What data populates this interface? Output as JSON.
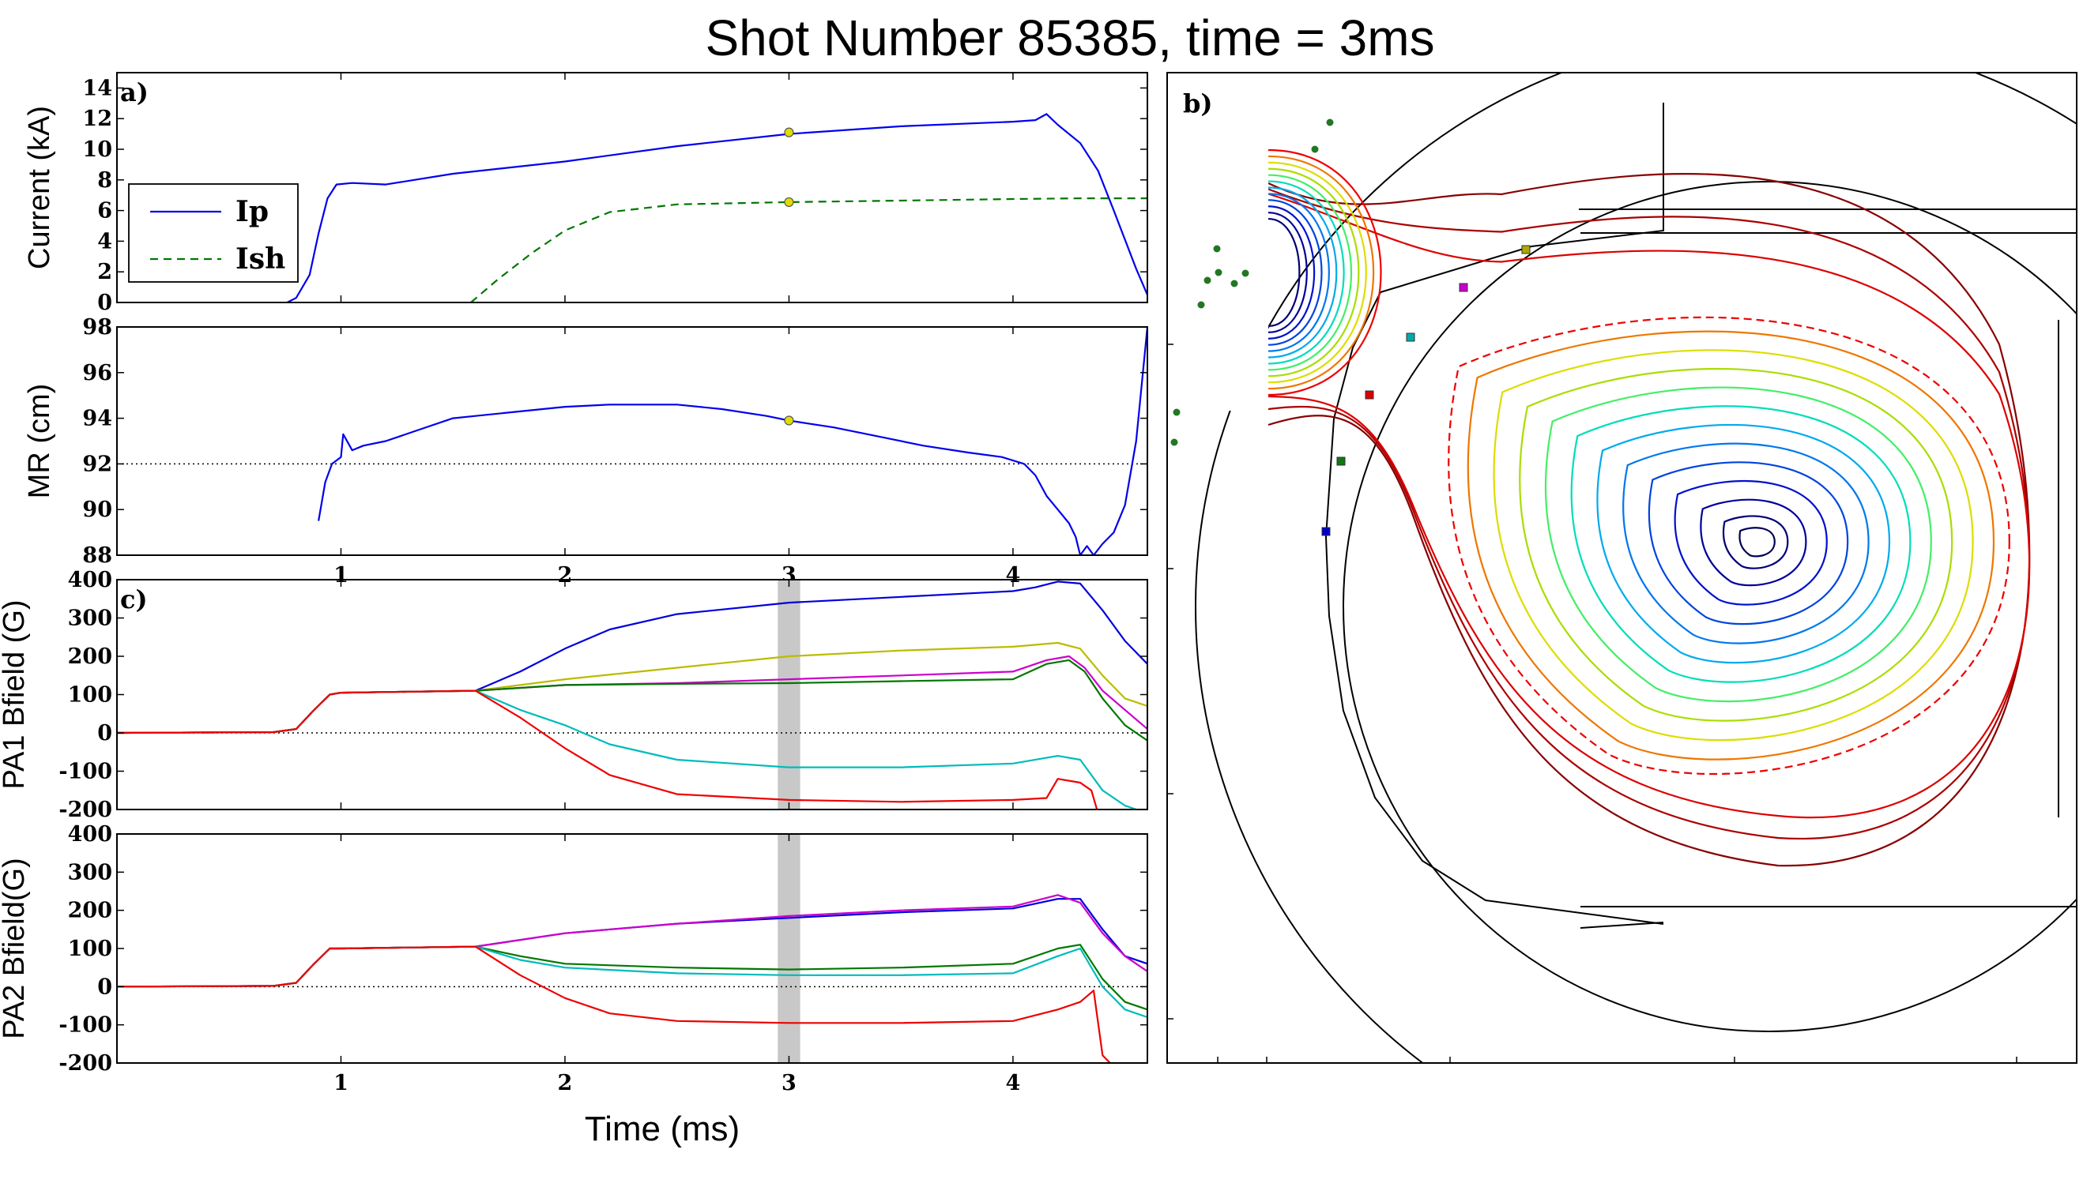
{
  "figure": {
    "title": "Shot Number 85385, time = 3ms",
    "xlabel": "Time (ms)",
    "time_marker_ms": 3
  },
  "chart_data": [
    {
      "id": "a",
      "type": "line",
      "panel_label": "a)",
      "ylabel": "Current (kA)",
      "xlim": [
        0,
        4.6
      ],
      "ylim": [
        0,
        15
      ],
      "yticks": [
        0,
        2,
        4,
        6,
        8,
        10,
        12,
        14
      ],
      "xticks": [],
      "legend": {
        "placement": "left",
        "entries": [
          "Ip",
          "Ish"
        ]
      },
      "series": [
        {
          "name": "Ip",
          "color": "#0000ee",
          "dash": "solid",
          "x": [
            0.76,
            0.8,
            0.86,
            0.9,
            0.94,
            0.98,
            1.05,
            1.2,
            1.5,
            2.0,
            2.5,
            3.0,
            3.5,
            4.0,
            4.1,
            4.15,
            4.2,
            4.3,
            4.38,
            4.45,
            4.55,
            4.6
          ],
          "y": [
            0,
            0.3,
            1.8,
            4.5,
            6.8,
            7.7,
            7.8,
            7.7,
            8.4,
            9.2,
            10.2,
            11.0,
            11.5,
            11.8,
            11.9,
            12.3,
            11.6,
            10.4,
            8.6,
            6.0,
            2.2,
            0.5
          ]
        },
        {
          "name": "Ish",
          "color": "#007700",
          "dash": "dashed",
          "x": [
            1.58,
            1.7,
            1.85,
            2.0,
            2.2,
            2.5,
            3.0,
            3.5,
            4.0,
            4.3,
            4.6
          ],
          "y": [
            0,
            1.5,
            3.2,
            4.7,
            5.9,
            6.4,
            6.55,
            6.65,
            6.75,
            6.8,
            6.8
          ]
        }
      ],
      "markers": [
        {
          "x": 3,
          "y": 11.1,
          "color": "#dddd00"
        },
        {
          "x": 3,
          "y": 6.55,
          "color": "#dddd00"
        }
      ]
    },
    {
      "id": "mr",
      "type": "line",
      "ylabel": "MR (cm)",
      "xlim": [
        0,
        4.6
      ],
      "ylim": [
        88,
        98
      ],
      "yticks": [
        88,
        90,
        92,
        94,
        96,
        98
      ],
      "xticks": [
        1,
        2,
        3,
        4
      ],
      "reference_line_y": 92,
      "series": [
        {
          "name": "",
          "color": "#0000ee",
          "dash": "solid",
          "x": [
            0.9,
            0.93,
            0.96,
            1.0,
            1.01,
            1.05,
            1.1,
            1.2,
            1.35,
            1.5,
            1.6,
            1.8,
            2.0,
            2.2,
            2.5,
            2.7,
            2.9,
            3.0,
            3.2,
            3.4,
            3.6,
            3.8,
            3.95,
            4.05,
            4.1,
            4.15,
            4.2,
            4.25,
            4.28,
            4.3,
            4.33,
            4.36,
            4.4,
            4.45,
            4.5,
            4.55,
            4.6
          ],
          "y": [
            89.5,
            91.2,
            92.0,
            92.3,
            93.3,
            92.6,
            92.8,
            93.0,
            93.5,
            94.0,
            94.1,
            94.3,
            94.5,
            94.6,
            94.6,
            94.4,
            94.1,
            93.9,
            93.6,
            93.2,
            92.8,
            92.5,
            92.3,
            92.0,
            91.5,
            90.6,
            90.0,
            89.4,
            88.8,
            88.0,
            88.4,
            88.0,
            88.5,
            89.0,
            90.2,
            93.0,
            98.0
          ]
        }
      ],
      "markers": [
        {
          "x": 3,
          "y": 93.9,
          "color": "#dddd00"
        }
      ]
    },
    {
      "id": "c",
      "type": "line",
      "panel_label": "c)",
      "ylabel": "PA1 Bfield (G)",
      "xlim": [
        0,
        4.6
      ],
      "ylim": [
        -200,
        400
      ],
      "yticks": [
        -200,
        -100,
        0,
        100,
        200,
        300,
        400
      ],
      "xticks": [],
      "reference_line_y": 0,
      "highlight_band": [
        2.95,
        3.05
      ],
      "series": [
        {
          "name": "",
          "color": "#0000dd",
          "dash": "solid",
          "x": [
            0,
            0.7,
            0.8,
            0.88,
            0.95,
            1.0,
            1.6,
            1.8,
            2.0,
            2.2,
            2.5,
            3.0,
            3.5,
            4.0,
            4.1,
            4.2,
            4.3,
            4.4,
            4.5,
            4.6
          ],
          "y": [
            0,
            2,
            10,
            60,
            100,
            105,
            110,
            160,
            220,
            270,
            310,
            340,
            355,
            370,
            380,
            395,
            390,
            320,
            240,
            180
          ]
        },
        {
          "name": "",
          "color": "#bbbb00",
          "dash": "solid",
          "x": [
            0,
            0.7,
            0.8,
            0.88,
            0.95,
            1.0,
            1.6,
            2.0,
            2.5,
            3.0,
            3.5,
            4.0,
            4.2,
            4.3,
            4.4,
            4.5,
            4.6
          ],
          "y": [
            0,
            2,
            10,
            60,
            100,
            105,
            110,
            140,
            170,
            200,
            215,
            225,
            235,
            220,
            150,
            90,
            70
          ]
        },
        {
          "name": "",
          "color": "#cc00cc",
          "dash": "solid",
          "x": [
            0,
            0.7,
            0.8,
            0.88,
            0.95,
            1.0,
            1.6,
            2.0,
            2.5,
            3.0,
            3.5,
            4.0,
            4.15,
            4.25,
            4.32,
            4.4,
            4.5,
            4.6
          ],
          "y": [
            0,
            2,
            10,
            60,
            100,
            105,
            110,
            125,
            130,
            140,
            150,
            160,
            190,
            200,
            170,
            110,
            60,
            10
          ]
        },
        {
          "name": "",
          "color": "#007700",
          "dash": "solid",
          "x": [
            0,
            0.7,
            0.8,
            0.88,
            0.95,
            1.0,
            1.6,
            2.0,
            2.5,
            3.0,
            3.5,
            4.0,
            4.15,
            4.25,
            4.32,
            4.4,
            4.5,
            4.6
          ],
          "y": [
            0,
            2,
            10,
            60,
            100,
            105,
            110,
            125,
            128,
            130,
            135,
            140,
            180,
            190,
            160,
            90,
            20,
            -20
          ]
        },
        {
          "name": "",
          "color": "#00bbbb",
          "dash": "solid",
          "x": [
            0,
            0.7,
            0.8,
            0.88,
            0.95,
            1.0,
            1.6,
            1.8,
            2.0,
            2.2,
            2.5,
            3.0,
            3.5,
            4.0,
            4.2,
            4.3,
            4.4,
            4.5,
            4.6
          ],
          "y": [
            0,
            2,
            10,
            60,
            100,
            105,
            110,
            60,
            20,
            -30,
            -70,
            -90,
            -90,
            -80,
            -60,
            -70,
            -150,
            -190,
            -210
          ]
        },
        {
          "name": "",
          "color": "#ee0000",
          "dash": "solid",
          "x": [
            0,
            0.7,
            0.8,
            0.88,
            0.95,
            1.0,
            1.6,
            1.8,
            2.0,
            2.2,
            2.5,
            3.0,
            3.5,
            4.0,
            4.15,
            4.2,
            4.3,
            4.35,
            4.38
          ],
          "y": [
            0,
            2,
            10,
            60,
            100,
            105,
            110,
            40,
            -40,
            -110,
            -160,
            -175,
            -180,
            -175,
            -170,
            -120,
            -130,
            -150,
            -210
          ]
        }
      ]
    },
    {
      "id": "d",
      "type": "line",
      "ylabel": "PA2 Bfield(G)",
      "xlim": [
        0,
        4.6
      ],
      "ylim": [
        -200,
        400
      ],
      "yticks": [
        -200,
        -100,
        0,
        100,
        200,
        300,
        400
      ],
      "xticks": [
        1,
        2,
        3,
        4
      ],
      "reference_line_y": 0,
      "highlight_band": [
        2.95,
        3.05
      ],
      "series": [
        {
          "name": "",
          "color": "#0000dd",
          "dash": "solid",
          "x": [
            0,
            0.7,
            0.8,
            0.88,
            0.95,
            1.0,
            1.6,
            2.0,
            2.5,
            3.0,
            3.5,
            4.0,
            4.2,
            4.3,
            4.4,
            4.5,
            4.6
          ],
          "y": [
            0,
            2,
            10,
            60,
            100,
            100,
            105,
            140,
            165,
            180,
            195,
            205,
            230,
            230,
            150,
            80,
            60
          ]
        },
        {
          "name": "",
          "color": "#cc00cc",
          "dash": "solid",
          "x": [
            0,
            0.7,
            0.8,
            0.88,
            0.95,
            1.0,
            1.6,
            2.0,
            2.5,
            3.0,
            3.5,
            4.0,
            4.2,
            4.3,
            4.4,
            4.5,
            4.6
          ],
          "y": [
            0,
            2,
            10,
            60,
            100,
            100,
            105,
            140,
            165,
            185,
            200,
            210,
            240,
            220,
            140,
            80,
            40
          ]
        },
        {
          "name": "",
          "color": "#007700",
          "dash": "solid",
          "x": [
            0,
            0.7,
            0.8,
            0.88,
            0.95,
            1.0,
            1.6,
            1.8,
            2.0,
            2.5,
            3.0,
            3.5,
            4.0,
            4.2,
            4.3,
            4.4,
            4.5,
            4.6
          ],
          "y": [
            0,
            2,
            10,
            60,
            100,
            100,
            105,
            80,
            60,
            50,
            45,
            50,
            60,
            100,
            110,
            20,
            -40,
            -60
          ]
        },
        {
          "name": "",
          "color": "#00bbbb",
          "dash": "solid",
          "x": [
            0,
            0.7,
            0.8,
            0.88,
            0.95,
            1.0,
            1.6,
            1.8,
            2.0,
            2.5,
            3.0,
            3.5,
            4.0,
            4.2,
            4.3,
            4.4,
            4.5,
            4.6
          ],
          "y": [
            0,
            2,
            10,
            60,
            100,
            100,
            105,
            70,
            50,
            35,
            30,
            30,
            35,
            80,
            100,
            0,
            -60,
            -80
          ]
        },
        {
          "name": "",
          "color": "#ee0000",
          "dash": "solid",
          "x": [
            0,
            0.7,
            0.8,
            0.88,
            0.95,
            1.0,
            1.6,
            1.8,
            2.0,
            2.2,
            2.5,
            3.0,
            3.5,
            4.0,
            4.2,
            4.3,
            4.36,
            4.4,
            4.45
          ],
          "y": [
            0,
            2,
            10,
            60,
            100,
            100,
            105,
            30,
            -30,
            -70,
            -90,
            -95,
            -95,
            -90,
            -60,
            -40,
            -10,
            -180,
            -210
          ]
        }
      ]
    },
    {
      "id": "b",
      "type": "contour",
      "panel_label": "b)"
    }
  ]
}
